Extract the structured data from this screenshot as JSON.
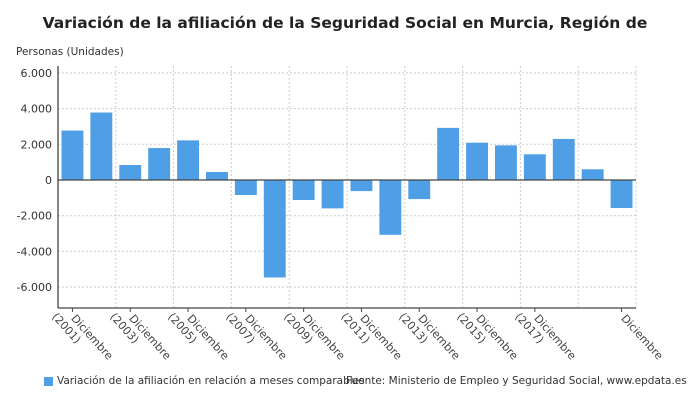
{
  "chart_data": {
    "type": "bar",
    "title": "Variación de la afiliación de la Seguridad Social en Murcia, Región de",
    "ylabel": "Personas (Unidades)",
    "xlabel": "",
    "ylim": [
      -7200,
      6600
    ],
    "yticks": [
      6000,
      4000,
      2000,
      0,
      -2000,
      -4000,
      -6000
    ],
    "ytick_labels": [
      "6.000",
      "4.000",
      "2.000",
      "0",
      "-2.000",
      "-4.000",
      "-6.000"
    ],
    "grid": true,
    "categories": [
      "Diciembre (2001)",
      "",
      "Diciembre (2003)",
      "",
      "Diciembre (2005)",
      "",
      "Diciembre (2007)",
      "",
      "Diciembre (2009)",
      "",
      "Diciembre (2011)",
      "",
      "Diciembre (2013)",
      "",
      "Diciembre (2015)",
      "",
      "Diciembre (2017)",
      "",
      "",
      "Diciembre"
    ],
    "series": [
      {
        "name": "Variación de la afiliación en relación a meses comparables",
        "color": "#4f9fe6",
        "values": [
          2770,
          3780,
          840,
          1790,
          2220,
          450,
          -840,
          -5460,
          -1120,
          -1590,
          -620,
          -3070,
          -1070,
          2920,
          2090,
          1940,
          1440,
          2300,
          600,
          -1570
        ]
      }
    ],
    "legend": "bottom-left",
    "source": "Fuente: Ministerio de Empleo y Seguridad Social, www.epdata.es"
  }
}
